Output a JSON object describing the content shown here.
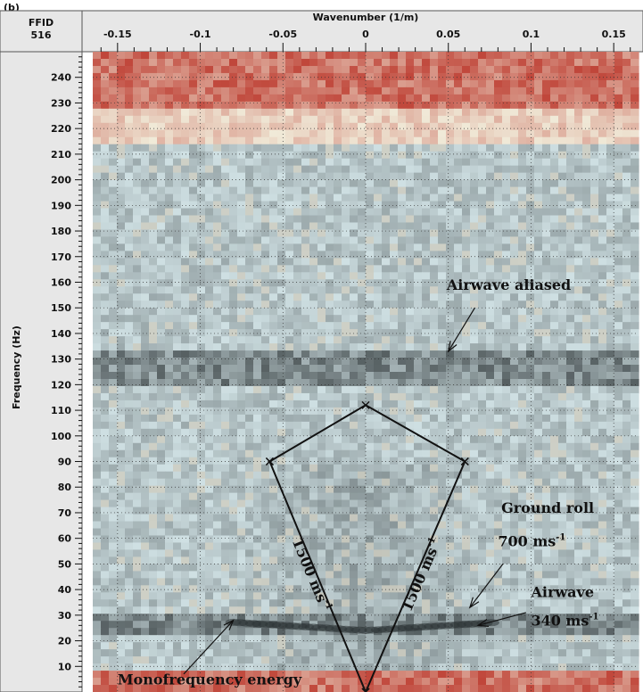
{
  "panel_label": "(b)",
  "chart_data": {
    "type": "heatmap",
    "header": {
      "line1": "FFID",
      "line2": "516"
    },
    "xlabel": "Wavenumber (1/m)",
    "ylabel": "Frequency (Hz)",
    "xlim": [
      -0.165,
      0.165
    ],
    "ylim": [
      0,
      250
    ],
    "xticks": [
      -0.15,
      -0.1,
      -0.05,
      0,
      0.05,
      0.1,
      0.15
    ],
    "xtick_labels": [
      "-0.15",
      "-0.1",
      "-0.05",
      "0",
      "0.05",
      "0.1",
      "0.15"
    ],
    "yticks": [
      10,
      20,
      30,
      40,
      50,
      60,
      70,
      80,
      90,
      100,
      110,
      120,
      130,
      140,
      150,
      160,
      170,
      180,
      190,
      200,
      210,
      220,
      230,
      240
    ],
    "ytick_labels": [
      "10",
      "20",
      "30",
      "40",
      "50",
      "60",
      "70",
      "80",
      "90",
      "100",
      "110",
      "120",
      "130",
      "140",
      "150",
      "160",
      "170",
      "180",
      "190",
      "200",
      "210",
      "220",
      "230",
      "240"
    ],
    "grid": true,
    "colors": {
      "low": "#cfe0e3",
      "mid": "#f0ead8",
      "high": "#c0463a",
      "dark": "#2e3537"
    },
    "energy_bands": [
      {
        "f_min": 228,
        "f_max": 250,
        "level": "high"
      },
      {
        "f_min": 214,
        "f_max": 228,
        "level": "mid"
      },
      {
        "f_min": 120,
        "f_max": 132,
        "level": "dark"
      },
      {
        "f_min": 22,
        "f_max": 30,
        "level": "dark"
      },
      {
        "f_min": 0,
        "f_max": 8,
        "level": "high"
      }
    ],
    "velocity_lines": [
      {
        "points": [
          [
            0,
            0
          ],
          [
            -0.058,
            90
          ]
        ],
        "label": "1500 ms",
        "sup": "-1"
      },
      {
        "points": [
          [
            0,
            0
          ],
          [
            0.06,
            90
          ]
        ],
        "label": "1500 ms",
        "sup": "-1"
      },
      {
        "points": [
          [
            -0.058,
            90
          ],
          [
            0,
            112
          ],
          [
            0.06,
            90
          ]
        ],
        "label": "",
        "sup": ""
      }
    ],
    "annotations": [
      {
        "text": "Airwave aliased",
        "sup": "",
        "at": [
          0.049,
          157
        ],
        "arrow_from": [
          0.066,
          150
        ],
        "arrow_to": [
          0.05,
          133
        ]
      },
      {
        "text": "Ground roll",
        "sup": "",
        "at": [
          0.082,
          70
        ],
        "arrow_from": null,
        "arrow_to": null
      },
      {
        "text": "700 ms",
        "sup": "-1",
        "at": [
          0.08,
          57
        ],
        "arrow_from": [
          0.083,
          50
        ],
        "arrow_to": [
          0.063,
          33
        ]
      },
      {
        "text": "Airwave",
        "sup": "",
        "at": [
          0.1,
          37
        ],
        "arrow_from": null,
        "arrow_to": null
      },
      {
        "text": "340 ms",
        "sup": "-1",
        "at": [
          0.1,
          26
        ],
        "arrow_from": [
          0.097,
          31
        ],
        "arrow_to": [
          0.068,
          26
        ]
      },
      {
        "text": "Monofrequency energy",
        "sup": "",
        "at": [
          -0.15,
          3
        ],
        "arrow_from": [
          -0.11,
          7
        ],
        "arrow_to": [
          -0.08,
          28
        ]
      }
    ]
  }
}
